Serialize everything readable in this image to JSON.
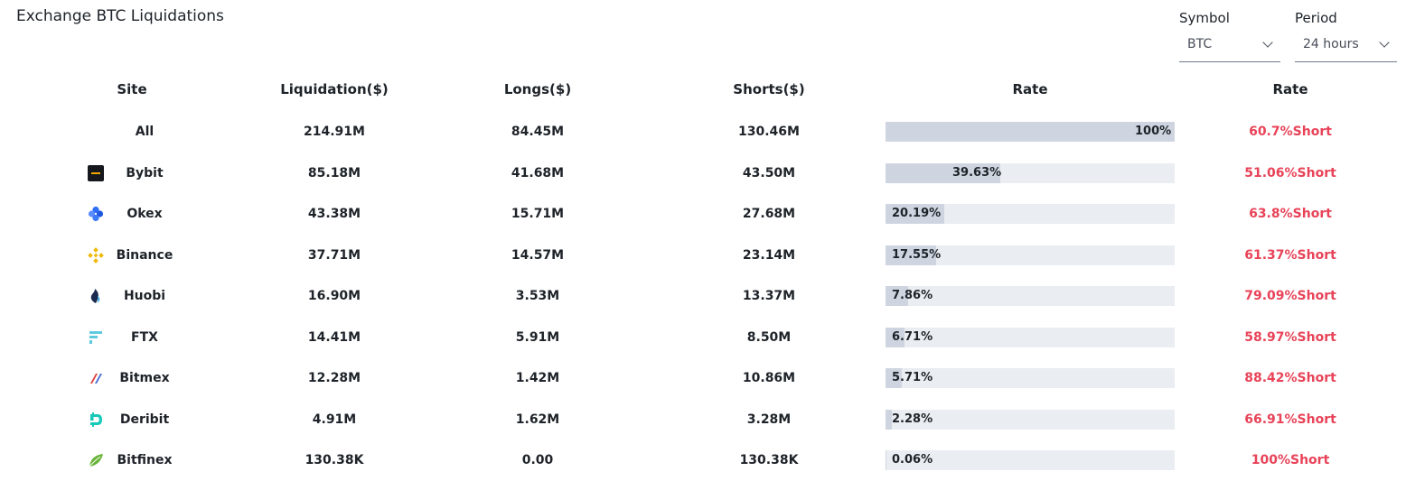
{
  "title": "Exchange BTC Liquidations",
  "filters": {
    "symbol": {
      "label": "Symbol",
      "value": "BTC"
    },
    "period": {
      "label": "Period",
      "value": "24 hours"
    }
  },
  "columns": [
    "Site",
    "Liquidation($)",
    "Longs($)",
    "Shorts($)",
    "Rate",
    "Rate"
  ],
  "accent_color": "#e84358",
  "rows": [
    {
      "site": "All",
      "icon": null,
      "liquidation": "214.91M",
      "longs": "84.45M",
      "shorts": "130.46M",
      "share": 1.0,
      "share_label": "100%",
      "rate": "60.7%Short"
    },
    {
      "site": "Bybit",
      "icon": "bybit-logo",
      "liquidation": "85.18M",
      "longs": "41.68M",
      "shorts": "43.50M",
      "share": 0.3963,
      "share_label": "39.63%",
      "rate": "51.06%Short"
    },
    {
      "site": "Okex",
      "icon": "okex-logo",
      "liquidation": "43.38M",
      "longs": "15.71M",
      "shorts": "27.68M",
      "share": 0.2019,
      "share_label": "20.19%",
      "rate": "63.8%Short"
    },
    {
      "site": "Binance",
      "icon": "binance-logo",
      "liquidation": "37.71M",
      "longs": "14.57M",
      "shorts": "23.14M",
      "share": 0.1755,
      "share_label": "17.55%",
      "rate": "61.37%Short"
    },
    {
      "site": "Huobi",
      "icon": "huobi-logo",
      "liquidation": "16.90M",
      "longs": "3.53M",
      "shorts": "13.37M",
      "share": 0.0786,
      "share_label": "7.86%",
      "rate": "79.09%Short"
    },
    {
      "site": "FTX",
      "icon": "ftx-logo",
      "liquidation": "14.41M",
      "longs": "5.91M",
      "shorts": "8.50M",
      "share": 0.0671,
      "share_label": "6.71%",
      "rate": "58.97%Short"
    },
    {
      "site": "Bitmex",
      "icon": "bitmex-logo",
      "liquidation": "12.28M",
      "longs": "1.42M",
      "shorts": "10.86M",
      "share": 0.0571,
      "share_label": "5.71%",
      "rate": "88.42%Short"
    },
    {
      "site": "Deribit",
      "icon": "deribit-logo",
      "liquidation": "4.91M",
      "longs": "1.62M",
      "shorts": "3.28M",
      "share": 0.0228,
      "share_label": "2.28%",
      "rate": "66.91%Short"
    },
    {
      "site": "Bitfinex",
      "icon": "bitfinex-logo",
      "liquidation": "130.38K",
      "longs": "0.00",
      "shorts": "130.38K",
      "share": 0.0006,
      "share_label": "0.06%",
      "rate": "100%Short"
    }
  ]
}
